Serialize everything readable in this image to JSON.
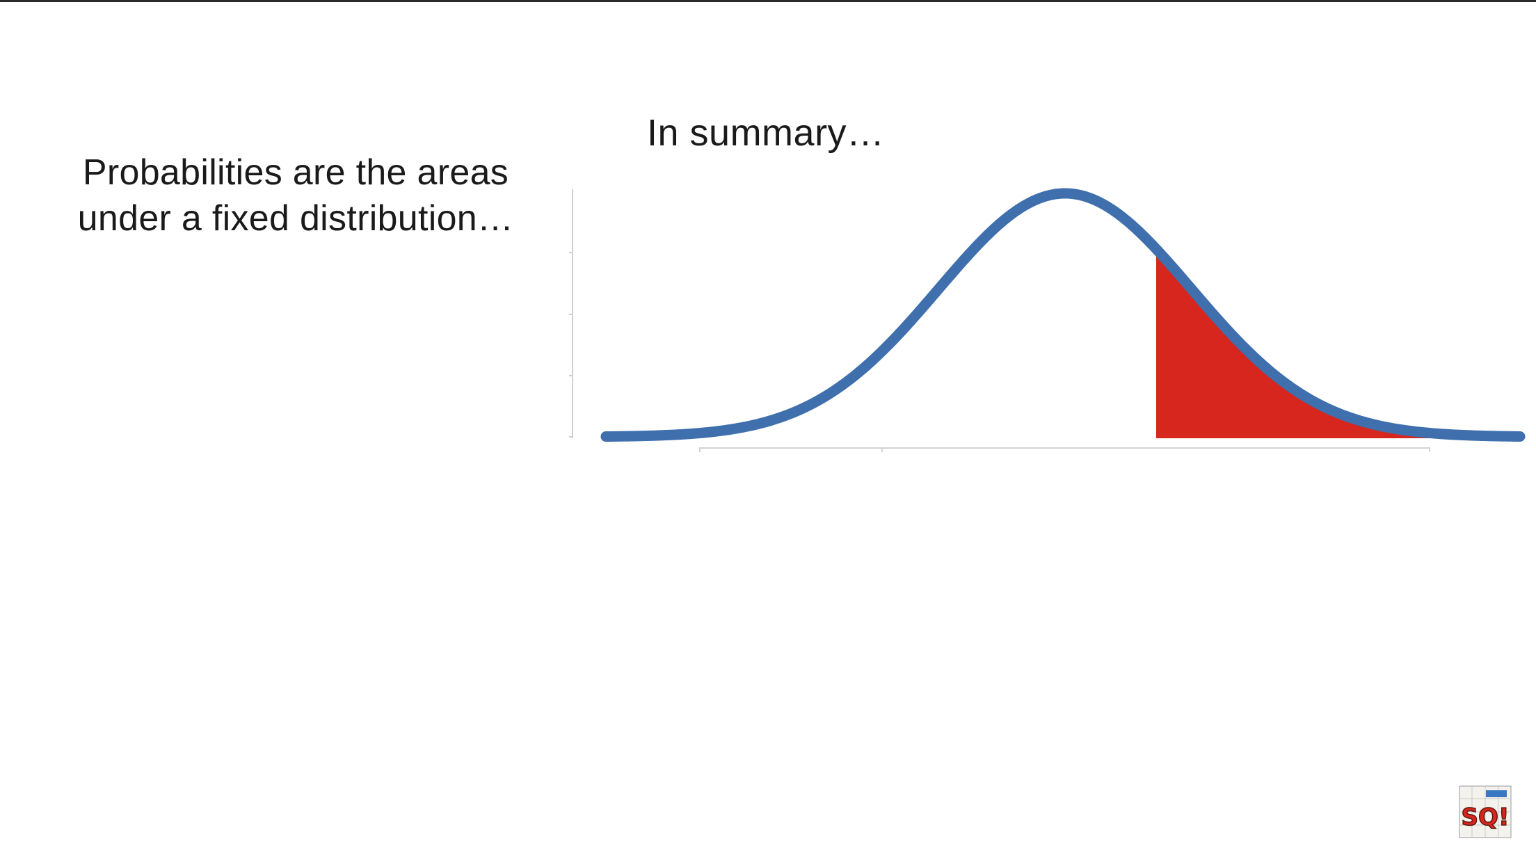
{
  "slide": {
    "heading": "In summary…",
    "caption_lines": [
      "Probabilities are the areas",
      "under a fixed distribution…"
    ]
  },
  "diagram": {
    "curve": "normal-distribution",
    "shaded_region": "right-tail",
    "colors": {
      "curve": "#3f6fad",
      "shaded_area": "#d6261e",
      "axis": "#cfcfcf"
    }
  },
  "logo": {
    "icon": "statquest-logo-icon",
    "text": "SQ!"
  }
}
